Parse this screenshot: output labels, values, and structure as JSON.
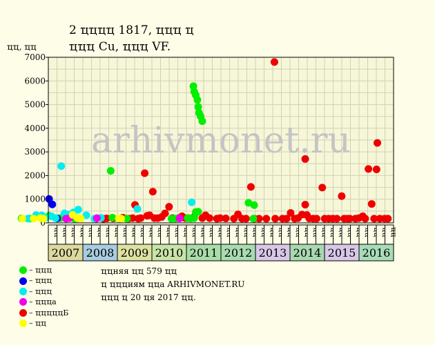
{
  "title": {
    "line1": "2 ҵҵҵҵ 1817, ҵҵҵ ҵ",
    "line2": "ҵҵҵ Cu, ҵҵҵ VF."
  },
  "colors": {
    "background": "#fefee8",
    "plot_bg": "#f6f6d9",
    "grid": "#d2d2b0",
    "green": "#00ee00",
    "blue": "#0000ee",
    "cyan": "#00eeee",
    "magenta": "#ee00ee",
    "red": "#ee0000",
    "yellow": "#ffff00"
  },
  "legend": [
    {
      "color": "#00ee00",
      "label": "– ҵҵҵ"
    },
    {
      "color": "#0000ee",
      "label": "– ҵҵҵ"
    },
    {
      "color": "#00eeee",
      "label": "– ҵҵҵ"
    },
    {
      "color": "#ee00ee",
      "label": "– ҵҵҵа"
    },
    {
      "color": "#ee0000",
      "label": "– ҵҵҵҵҵБ"
    },
    {
      "color": "#ffff00",
      "label": "– ҵҵ"
    }
  ],
  "notes": [
    "ҵҵняя ҵҵ 579 ҵҵ",
    "ҵ ҵҵҵиям ҵҵа ARHIVMONET.RU",
    "ҵҵҵ ҵ 20 ҵя 2017 ҵҵ."
  ],
  "watermark": "arhivmonet.ru",
  "chart_data": {
    "type": "scatter",
    "title": "2 ҵҵҵҵ 1817, ҵҵҵ ҵ / ҵҵҵ Cu, ҵҵҵ VF.",
    "ylabel": "ҵҵ, ҵҵ",
    "ylim": [
      0,
      7000
    ],
    "yticks": [
      0,
      1000,
      2000,
      3000,
      4000,
      5000,
      6000,
      7000
    ],
    "grid": true,
    "years": [
      {
        "label": "2007",
        "color": "#ddd9a0"
      },
      {
        "label": "2008",
        "color": "#a8cce0"
      },
      {
        "label": "2009",
        "color": "#dde2a0"
      },
      {
        "label": "2010",
        "color": "#c8e4a8"
      },
      {
        "label": "2011",
        "color": "#a8dca8"
      },
      {
        "label": "2012",
        "color": "#a8dcb0"
      },
      {
        "label": "2013",
        "color": "#d8c8e8"
      },
      {
        "label": "2014",
        "color": "#a8d8b0"
      },
      {
        "label": "2015",
        "color": "#d8c8e8"
      },
      {
        "label": "2016",
        "color": "#a8dcb8"
      }
    ],
    "month_labels": [
      "ҵҵ",
      "ҵҵ",
      "ҵҵ",
      "ҵҵ",
      "ҵҵ",
      "ҵҵ",
      "ҵҵ",
      "ҵҵ",
      "ҵҵ",
      "ҵҵ",
      "ҵҵ",
      "ҵҵ",
      "ҵҵ",
      "ҵҵ",
      "ҵҵ",
      "ҵҵ",
      "ҵҵ",
      "ҵҵ",
      "ҵҵ",
      "ҵҵ",
      "ҵҵ",
      "ҵҵ",
      "ҵҵ",
      "ҵҵ",
      "ҵҵ",
      "ҵҵ",
      "ҵҵ",
      "ҵҵ",
      "ҵҵ",
      "ҵҵ",
      "ҵҵ",
      "ҵҵ",
      "ҵҵ",
      "ҵҵ",
      "ҵҵ",
      "ҵҵ",
      "ҵҵ",
      "ҵҵ",
      "ҵҵ",
      "ҵҵ"
    ],
    "x_unit": "quarter index from start of 2007 (0-40)",
    "series": [
      {
        "color": "#ee0000",
        "points": [
          [
            9.3,
            180
          ],
          [
            10.2,
            170
          ],
          [
            10.6,
            190
          ],
          [
            11.4,
            190
          ],
          [
            12.3,
            180
          ],
          [
            12.6,
            220
          ],
          [
            13.3,
            180
          ],
          [
            13.8,
            200
          ],
          [
            14.1,
            760
          ],
          [
            14.5,
            180
          ],
          [
            14.8,
            200
          ],
          [
            15.3,
            2100
          ],
          [
            15.6,
            300
          ],
          [
            15.9,
            320
          ],
          [
            16.3,
            1320
          ],
          [
            16.5,
            200
          ],
          [
            16.9,
            200
          ],
          [
            17.4,
            250
          ],
          [
            17.8,
            400
          ],
          [
            18.3,
            680
          ],
          [
            18.7,
            200
          ],
          [
            19.5,
            200
          ],
          [
            19.9,
            280
          ],
          [
            20.3,
            200
          ],
          [
            20.7,
            200
          ],
          [
            21.4,
            250
          ],
          [
            22.4,
            200
          ],
          [
            22.8,
            320
          ],
          [
            23.3,
            200
          ],
          [
            24.2,
            180
          ],
          [
            24.6,
            200
          ],
          [
            25.3,
            190
          ],
          [
            26.3,
            180
          ],
          [
            26.8,
            360
          ],
          [
            27.3,
            180
          ],
          [
            27.8,
            180
          ],
          [
            28.4,
            1520
          ],
          [
            28.8,
            180
          ],
          [
            29.4,
            180
          ],
          [
            30.3,
            180
          ],
          [
            31.3,
            6800
          ],
          [
            31.4,
            180
          ],
          [
            32.3,
            180
          ],
          [
            32.8,
            180
          ],
          [
            33.3,
            420
          ],
          [
            33.8,
            180
          ],
          [
            34.2,
            200
          ],
          [
            34.7,
            350
          ],
          [
            35.1,
            770
          ],
          [
            35.1,
            2700
          ],
          [
            35.3,
            330
          ],
          [
            35.6,
            190
          ],
          [
            36.1,
            180
          ],
          [
            36.5,
            180
          ],
          [
            37.2,
            1490
          ],
          [
            37.5,
            180
          ],
          [
            38.0,
            180
          ],
          [
            38.5,
            180
          ],
          [
            39.0,
            180
          ],
          [
            39.6,
            1130
          ],
          [
            39.9,
            180
          ],
          [
            40.3,
            180
          ],
          [
            40.6,
            180
          ],
          [
            41.3,
            180
          ],
          [
            41.7,
            200
          ],
          [
            42.2,
            280
          ],
          [
            42.5,
            180
          ],
          [
            42.9,
            2280
          ],
          [
            43.3,
            800
          ],
          [
            43.6,
            180
          ],
          [
            43.9,
            2260
          ],
          [
            44.0,
            3380
          ],
          [
            44.3,
            180
          ],
          [
            44.9,
            180
          ],
          [
            45.3,
            180
          ]
        ]
      },
      {
        "color": "#00ee00",
        "points": [
          [
            0.1,
            190
          ],
          [
            1.1,
            180
          ],
          [
            3.5,
            300
          ],
          [
            4.9,
            200
          ],
          [
            6.6,
            180
          ],
          [
            6.9,
            180
          ],
          [
            11.1,
            2200
          ],
          [
            11.3,
            220
          ],
          [
            12.3,
            180
          ],
          [
            13.1,
            180
          ],
          [
            18.6,
            180
          ],
          [
            19.1,
            180
          ],
          [
            20.6,
            200
          ],
          [
            21.0,
            190
          ],
          [
            21.3,
            5780
          ],
          [
            21.4,
            5550
          ],
          [
            21.6,
            5400
          ],
          [
            21.8,
            5200
          ],
          [
            21.9,
            4900
          ],
          [
            22.0,
            4650
          ],
          [
            22.2,
            4500
          ],
          [
            22.4,
            4300
          ],
          [
            21.6,
            460
          ],
          [
            21.9,
            470
          ],
          [
            21.4,
            200
          ],
          [
            28.1,
            850
          ],
          [
            28.8,
            750
          ],
          [
            28.7,
            180
          ]
        ]
      },
      {
        "color": "#0000ee",
        "points": [
          [
            3.5,
            1010
          ],
          [
            3.9,
            780
          ],
          [
            4.5,
            190
          ]
        ]
      },
      {
        "color": "#00eeee",
        "points": [
          [
            0.9,
            180
          ],
          [
            1.9,
            330
          ],
          [
            2.6,
            320
          ],
          [
            3.0,
            200
          ],
          [
            3.8,
            280
          ],
          [
            4.3,
            200
          ],
          [
            5.0,
            2400
          ],
          [
            5.4,
            400
          ],
          [
            5.9,
            350
          ],
          [
            6.5,
            440
          ],
          [
            7.1,
            560
          ],
          [
            8.1,
            320
          ],
          [
            9.1,
            180
          ],
          [
            9.9,
            210
          ],
          [
            12.1,
            180
          ],
          [
            14.4,
            590
          ],
          [
            21.1,
            870
          ]
        ]
      },
      {
        "color": "#ee00ee",
        "points": [
          [
            5.6,
            180
          ],
          [
            6.0,
            200
          ],
          [
            9.4,
            200
          ],
          [
            19.6,
            190
          ]
        ]
      },
      {
        "color": "#ffff00",
        "points": [
          [
            0.2,
            180
          ],
          [
            1.6,
            180
          ],
          [
            2.4,
            200
          ],
          [
            2.8,
            180
          ],
          [
            6.4,
            340
          ],
          [
            7.0,
            200
          ],
          [
            7.4,
            190
          ],
          [
            12.1,
            190
          ],
          [
            12.4,
            180
          ]
        ]
      }
    ]
  }
}
